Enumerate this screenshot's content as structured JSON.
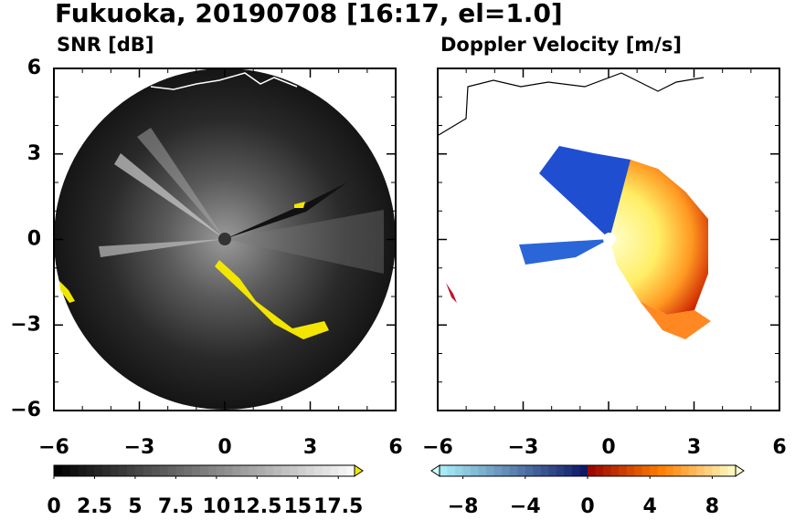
{
  "title": "Fukuoka, 20190708 [16:17, el=1.0]",
  "chart_data": [
    {
      "type": "radar",
      "subtitle": "SNR [dB]",
      "xlim": [
        -6,
        6
      ],
      "ylim": [
        -6,
        6
      ],
      "xticks": [
        {
          "value": -6,
          "label": "−6"
        },
        {
          "value": -3,
          "label": "−3"
        },
        0,
        3,
        6
      ],
      "yticks": [
        {
          "value": -6,
          "label": "−6"
        },
        {
          "value": -3,
          "label": "−3"
        },
        0,
        3,
        6
      ],
      "colorbar": {
        "clim": [
          0,
          18.5
        ],
        "colormap": "gray",
        "extend": "max",
        "ticks": [
          0,
          2.5,
          5,
          7.5,
          10,
          12.5,
          15,
          17.5
        ]
      }
    },
    {
      "type": "radar",
      "subtitle": "Doppler Velocity [m/s]",
      "xlim": [
        -6,
        6
      ],
      "ylim": [
        -6,
        6
      ],
      "xticks": [
        {
          "value": -6,
          "label": "−6"
        },
        {
          "value": -3,
          "label": "−3"
        },
        0,
        3,
        6
      ],
      "yticks": [
        -6,
        -3,
        0,
        3,
        6
      ],
      "colorbar": {
        "clim": [
          -9.5,
          9.5
        ],
        "colormap": "diverging",
        "extend": "both",
        "ticks": [
          {
            "value": -8,
            "label": "−8"
          },
          {
            "value": -4,
            "label": "−4"
          },
          0,
          4,
          8
        ]
      }
    }
  ]
}
